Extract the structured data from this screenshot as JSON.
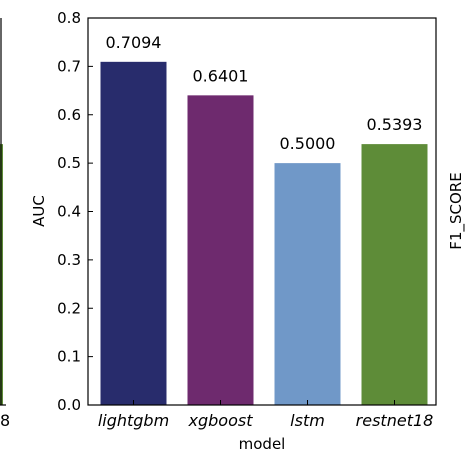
{
  "chart_data": {
    "type": "bar",
    "categories": [
      "lightgbm",
      "xgboost",
      "lstm",
      "restnet18"
    ],
    "values": [
      0.7094,
      0.6401,
      0.5,
      0.5393
    ],
    "data_labels": [
      "0.7094",
      "0.6401",
      "0.5000",
      "0.5393"
    ],
    "colors": [
      "#282c6c",
      "#6e2a6e",
      "#7098c8",
      "#5e8c38"
    ],
    "xlabel": "model",
    "ylabel": "AUC",
    "ylim": [
      0,
      0.8
    ],
    "yticks": [
      "0.0",
      "0.1",
      "0.2",
      "0.3",
      "0.4",
      "0.5",
      "0.6",
      "0.7",
      "0.8"
    ],
    "grid": false,
    "legend": "none"
  },
  "neighbors": {
    "left_panel": {
      "tick_label": "8",
      "bar_color": "#5e8c38",
      "bar_value": 0.5393
    },
    "right_panel": {
      "ylabel": "F1_SCORE"
    }
  }
}
